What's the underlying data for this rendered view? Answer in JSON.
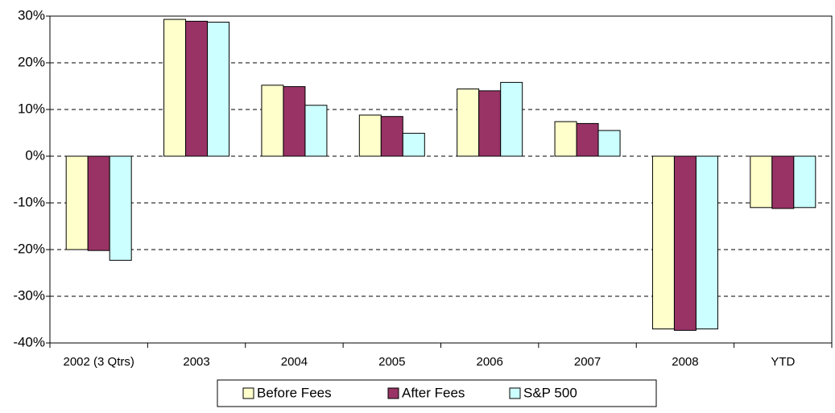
{
  "chart_data": {
    "type": "bar",
    "categories": [
      "2002 (3 Qtrs)",
      "2003",
      "2004",
      "2005",
      "2006",
      "2007",
      "2008",
      "YTD"
    ],
    "series": [
      {
        "name": "Before Fees",
        "color": "#ffffcc",
        "values": [
          -20.0,
          29.3,
          15.2,
          8.8,
          14.4,
          7.4,
          -37.0,
          -11.0
        ]
      },
      {
        "name": "After Fees",
        "color": "#993366",
        "values": [
          -20.2,
          28.9,
          14.9,
          8.5,
          14.0,
          7.0,
          -37.3,
          -11.2
        ]
      },
      {
        "name": "S&P 500",
        "color": "#ccffff",
        "values": [
          -22.3,
          28.7,
          10.9,
          4.9,
          15.8,
          5.5,
          -37.0,
          -11.0
        ]
      }
    ],
    "ylim": [
      -40,
      30
    ],
    "yticks": [
      {
        "value": -40,
        "label": "-40%"
      },
      {
        "value": -30,
        "label": "-30%"
      },
      {
        "value": -20,
        "label": "-20%"
      },
      {
        "value": -10,
        "label": "-10%"
      },
      {
        "value": 0,
        "label": "0%"
      },
      {
        "value": 10,
        "label": "10%"
      },
      {
        "value": 20,
        "label": "20%"
      },
      {
        "value": 30,
        "label": "30%"
      }
    ],
    "grid": true,
    "legend": "bottom"
  }
}
